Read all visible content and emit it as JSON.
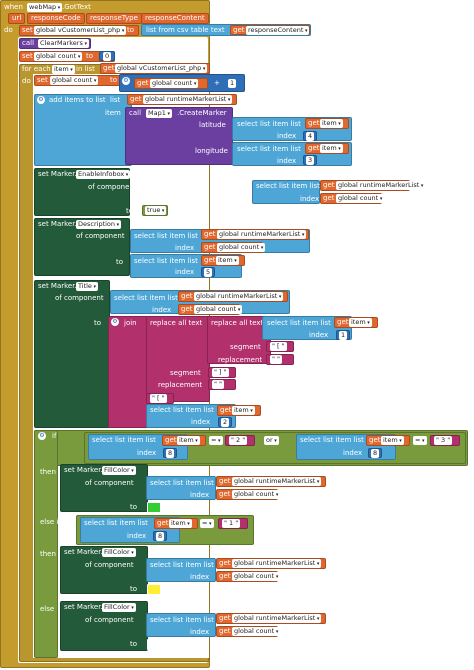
{
  "event": {
    "when": "when",
    "component": "webMap",
    "event_name": ".GotText",
    "do": "do",
    "params": [
      "url",
      "responseCode",
      "responseType",
      "responseContent"
    ]
  },
  "set_customer": {
    "set": "set",
    "var": "global vCustomerList_php",
    "to": "to",
    "list_from_csv": "list from csv table  text",
    "get": "get",
    "arg": "responseContent"
  },
  "call_clear": {
    "call": "call",
    "method": "ClearMarkers"
  },
  "set_count": {
    "set": "set",
    "var": "global count",
    "to": "to",
    "value": "0"
  },
  "foreach": {
    "for_each": "for each",
    "item": "item",
    "in_list": "in list",
    "get": "get",
    "list": "global vCustomerList_php",
    "do": "do"
  },
  "inc_count": {
    "set": "set",
    "var": "global count",
    "to": "to",
    "get": "get",
    "var2": "global count",
    "plus": "+",
    "one": "1"
  },
  "add_items": {
    "label": "add items to list",
    "list": "list",
    "get": "get",
    "list_var": "global runtimeMarkerList",
    "item": "item",
    "call": "call",
    "map": "Map1",
    "method": ".CreateMarker",
    "latitude": "latitude",
    "longitude": "longitude",
    "select": "select list item  list",
    "get_item": "item",
    "index": "index",
    "lat_index": "4",
    "lon_index": "3"
  },
  "enable_infobox": {
    "set": "set Marker.",
    "prop": "EnableInfobox",
    "of_component": "of component",
    "select": "select list item  list",
    "get": "get",
    "list_var": "global runtimeMarkerList",
    "index": "index",
    "count": "global count",
    "to": "to",
    "value": "true"
  },
  "description": {
    "set": "set Marker.",
    "prop": "Description",
    "of_component": "of component",
    "select": "select list item  list",
    "get": "get",
    "list_var": "global runtimeMarkerList",
    "index": "index",
    "count": "global count",
    "to": "to",
    "item": "item",
    "idx": "5"
  },
  "title": {
    "set": "set Marker.",
    "prop": "Title",
    "of_component": "of component",
    "select": "select list item  list",
    "get": "get",
    "list_var": "global runtimeMarkerList",
    "index": "index",
    "count": "global count",
    "to": "to",
    "join": "join",
    "replace_all": "replace all text",
    "segment": "segment",
    "replacement": "replacement",
    "seg1": "\" [ \"",
    "rep1": "\" \"",
    "seg2": "\" ] \"",
    "rep2": "\" \"",
    "quote": "\" [ \"",
    "item": "item",
    "idx1": "1",
    "idx2": "2"
  },
  "if_block": {
    "if": "if",
    "then": "then",
    "else_if": "else if",
    "else": "else",
    "or": "or",
    "select": "select list item  list",
    "get": "get",
    "item": "item",
    "index": "index",
    "eq": "=",
    "v1": "\" 2 \"",
    "v2": "\" 3 \"",
    "v3": "\" 1 \"",
    "idx": "8"
  },
  "fill": {
    "set": "set Marker.",
    "prop": "FillColor",
    "of_component": "of component",
    "select": "select list item  list",
    "get": "get",
    "list_var": "global runtimeMarkerList",
    "index": "index",
    "count": "global count",
    "to": "to"
  },
  "colors": {
    "green": "#33cc33",
    "yellow": "#ffee33",
    "white": "#ffffff"
  }
}
